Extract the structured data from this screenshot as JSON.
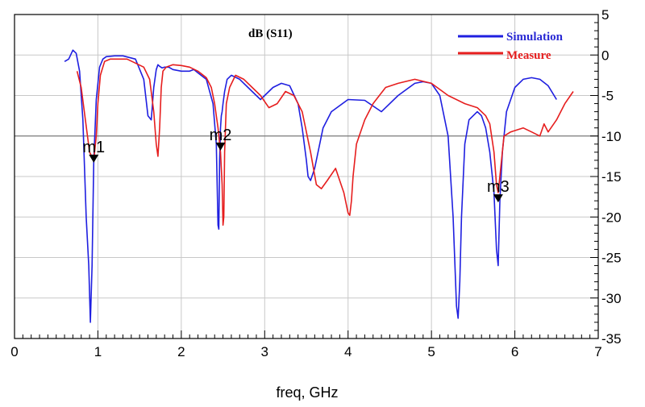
{
  "chart_data": {
    "type": "line",
    "title": "dB (S11)",
    "xlabel": "freq, GHz",
    "ylabel": "",
    "xlim": [
      0,
      7
    ],
    "ylim": [
      -35,
      5
    ],
    "x_ticks": [
      0,
      1,
      2,
      3,
      4,
      5,
      6,
      7
    ],
    "y_ticks": [
      5,
      0,
      -5,
      -10,
      -15,
      -20,
      -25,
      -30,
      -35
    ],
    "y_tick_labels": [
      "5",
      "0",
      "-5",
      "-10",
      "-15",
      "-20",
      "-25",
      "-30",
      "-35"
    ],
    "grid": true,
    "legend_position": "top-right",
    "series": [
      {
        "name": "Simulation",
        "color": "#1f1fe0",
        "x": [
          0.6,
          0.65,
          0.7,
          0.74,
          0.78,
          0.82,
          0.86,
          0.89,
          0.91,
          0.93,
          0.95,
          0.98,
          1.02,
          1.06,
          1.1,
          1.2,
          1.3,
          1.45,
          1.55,
          1.6,
          1.64,
          1.67,
          1.7,
          1.72,
          1.74,
          1.77,
          1.8,
          1.85,
          1.9,
          2.0,
          2.1,
          2.15,
          2.2,
          2.3,
          2.38,
          2.42,
          2.44,
          2.45,
          2.46,
          2.47,
          2.48,
          2.49,
          2.5,
          2.52,
          2.55,
          2.6,
          2.7,
          2.8,
          2.9,
          2.95,
          3.0,
          3.1,
          3.2,
          3.3,
          3.4,
          3.45,
          3.5,
          3.52,
          3.55,
          3.6,
          3.7,
          3.8,
          4.0,
          4.2,
          4.4,
          4.6,
          4.8,
          4.9,
          5.0,
          5.1,
          5.2,
          5.26,
          5.3,
          5.32,
          5.34,
          5.36,
          5.4,
          5.45,
          5.5,
          5.55,
          5.6,
          5.65,
          5.7,
          5.75,
          5.78,
          5.8,
          5.82,
          5.85,
          5.9,
          6.0,
          6.1,
          6.2,
          6.3,
          6.4,
          6.5
        ],
        "y": [
          -0.8,
          -0.5,
          0.6,
          0.2,
          -2.0,
          -8.0,
          -20.0,
          -26.0,
          -33.0,
          -26.0,
          -13.0,
          -5.5,
          -1.5,
          -0.5,
          -0.2,
          -0.1,
          -0.1,
          -0.5,
          -3.0,
          -7.5,
          -8.0,
          -4.0,
          -1.8,
          -1.2,
          -1.4,
          -1.6,
          -1.5,
          -1.5,
          -1.8,
          -2.0,
          -2.0,
          -1.8,
          -2.2,
          -3.0,
          -6.0,
          -11.0,
          -21.0,
          -21.5,
          -13.0,
          -9.0,
          -7.5,
          -7.0,
          -6.0,
          -4.5,
          -3.0,
          -2.5,
          -3.0,
          -4.0,
          -5.0,
          -5.5,
          -5.0,
          -4.0,
          -3.5,
          -3.8,
          -6.0,
          -9.0,
          -13.0,
          -15.0,
          -15.5,
          -14.0,
          -9.0,
          -7.0,
          -5.5,
          -5.6,
          -7.0,
          -5.0,
          -3.5,
          -3.3,
          -3.5,
          -5.0,
          -10.0,
          -20.0,
          -31.0,
          -32.5,
          -28.0,
          -20.0,
          -11.0,
          -8.0,
          -7.5,
          -7.0,
          -7.5,
          -9.0,
          -12.0,
          -17.0,
          -24.0,
          -26.0,
          -18.0,
          -12.0,
          -7.0,
          -4.0,
          -3.0,
          -2.8,
          -3.0,
          -3.8,
          -5.5
        ]
      },
      {
        "name": "Measure",
        "color": "#e61e1e",
        "x": [
          0.75,
          0.8,
          0.85,
          0.9,
          0.95,
          0.98,
          1.0,
          1.03,
          1.08,
          1.15,
          1.25,
          1.35,
          1.45,
          1.55,
          1.62,
          1.67,
          1.7,
          1.72,
          1.74,
          1.76,
          1.78,
          1.82,
          1.9,
          2.0,
          2.1,
          2.2,
          2.3,
          2.36,
          2.4,
          2.44,
          2.47,
          2.49,
          2.5,
          2.51,
          2.52,
          2.54,
          2.58,
          2.65,
          2.75,
          2.85,
          2.95,
          3.05,
          3.15,
          3.25,
          3.35,
          3.45,
          3.55,
          3.62,
          3.68,
          3.75,
          3.85,
          3.95,
          4.0,
          4.02,
          4.04,
          4.06,
          4.1,
          4.2,
          4.3,
          4.45,
          4.6,
          4.8,
          5.0,
          5.2,
          5.4,
          5.55,
          5.65,
          5.7,
          5.75,
          5.78,
          5.8,
          5.83,
          5.87,
          5.95,
          6.1,
          6.2,
          6.3,
          6.35,
          6.4,
          6.5,
          6.6,
          6.7
        ],
        "y": [
          -2.0,
          -4.0,
          -8.0,
          -12.0,
          -13.0,
          -10.0,
          -6.0,
          -2.5,
          -0.8,
          -0.5,
          -0.5,
          -0.5,
          -1.0,
          -1.5,
          -3.0,
          -7.0,
          -11.0,
          -12.5,
          -9.0,
          -4.0,
          -2.0,
          -1.5,
          -1.2,
          -1.3,
          -1.5,
          -2.0,
          -2.8,
          -4.0,
          -6.0,
          -9.0,
          -12.0,
          -16.0,
          -21.0,
          -20.0,
          -12.0,
          -6.0,
          -4.0,
          -2.5,
          -3.0,
          -4.0,
          -5.0,
          -6.5,
          -6.0,
          -4.5,
          -5.0,
          -7.0,
          -12.0,
          -16.0,
          -16.5,
          -15.5,
          -14.0,
          -17.0,
          -19.5,
          -19.8,
          -18.0,
          -15.0,
          -11.0,
          -8.0,
          -6.0,
          -4.0,
          -3.5,
          -3.0,
          -3.5,
          -5.0,
          -6.0,
          -6.5,
          -7.5,
          -8.5,
          -12.0,
          -16.0,
          -17.0,
          -14.0,
          -10.0,
          -9.5,
          -9.0,
          -9.5,
          -10.0,
          -8.5,
          -9.5,
          -8.0,
          -6.0,
          -4.5
        ]
      }
    ],
    "markers": [
      {
        "label": "m1",
        "x": 0.95,
        "y": -13.0
      },
      {
        "label": "m2",
        "x": 2.47,
        "y": -11.5
      },
      {
        "label": "m3",
        "x": 5.8,
        "y": -17.9
      }
    ]
  }
}
